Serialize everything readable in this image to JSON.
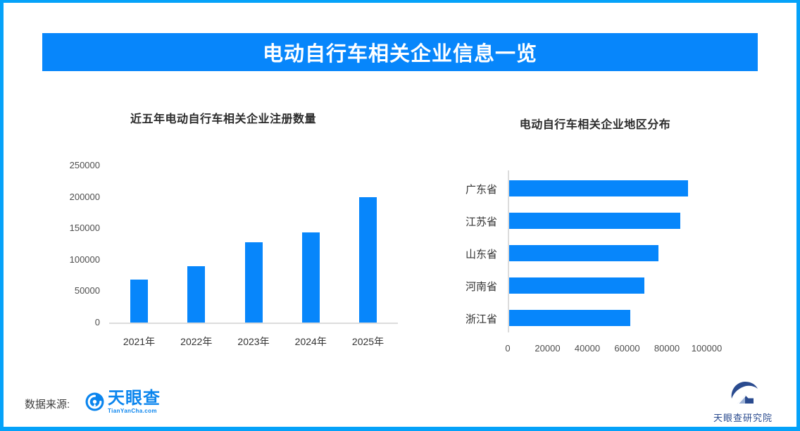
{
  "banner": {
    "title": "电动自行车相关企业信息一览"
  },
  "colors": {
    "accent_blue": "#0786fb",
    "border_blue": "#05a2f9",
    "logo_blue": "#0b85ee",
    "research_navy": "#2a4b8f",
    "axis_line": "#dcdcdc"
  },
  "chart_data": [
    {
      "type": "bar",
      "orientation": "vertical",
      "title": "近五年电动自行车相关企业注册数量",
      "categories": [
        "2021年",
        "2022年",
        "2023年",
        "2024年",
        "2025年"
      ],
      "values": [
        68000,
        90000,
        128000,
        143000,
        200000
      ],
      "ylabel": "",
      "xlabel": "",
      "ylim": [
        0,
        250000
      ],
      "yticks": [
        0,
        50000,
        100000,
        150000,
        200000,
        250000
      ],
      "grid": false,
      "bar_color": "#0786fb"
    },
    {
      "type": "bar",
      "orientation": "horizontal",
      "title": "电动自行车相关企业地区分布",
      "categories": [
        "广东省",
        "江苏省",
        "山东省",
        "河南省",
        "浙江省"
      ],
      "values": [
        90000,
        86000,
        75000,
        68000,
        61000
      ],
      "ylabel": "",
      "xlabel": "",
      "xlim": [
        0,
        100000
      ],
      "xticks": [
        0,
        20000,
        40000,
        60000,
        80000,
        100000
      ],
      "grid": false,
      "bar_color": "#0786fb"
    }
  ],
  "footer": {
    "source_label": "数据来源:",
    "tianyancha": {
      "name": "天眼查",
      "domain": "TianYanCha.com"
    },
    "research": {
      "name": "天眼查研究院"
    }
  }
}
